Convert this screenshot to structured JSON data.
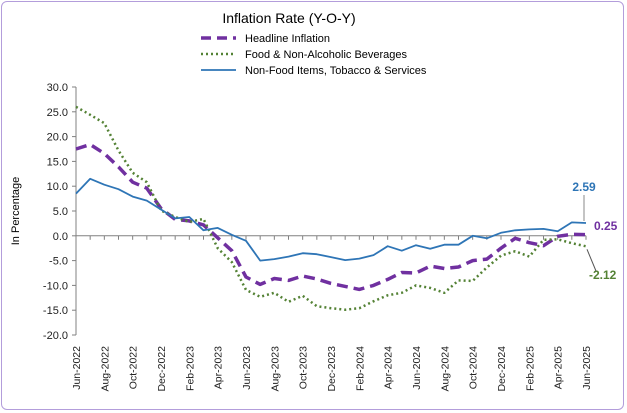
{
  "chart_data": {
    "type": "line",
    "title": "Inflation Rate (Y-O-Y)",
    "xlabel": "",
    "ylabel": "In Percentage",
    "ylim": [
      -20,
      30
    ],
    "yticks": [
      "30.0",
      "25.0",
      "20.0",
      "15.0",
      "10.0",
      "5.0",
      "0.0",
      "-5.0",
      "-10.0",
      "-15.0",
      "-20.0"
    ],
    "xtick_labels": [
      "Jun-2022",
      "Aug-2022",
      "Oct-2022",
      "Dec-2022",
      "Feb-2023",
      "Apr-2023",
      "Jun-2023",
      "Aug-2023",
      "Oct-2023",
      "Dec-2023",
      "Feb-2024",
      "Apr-2024",
      "Jun-2024",
      "Aug-2024",
      "Oct-2024",
      "Dec-2024",
      "Feb-2025",
      "Apr-2025",
      "Jun-2025"
    ],
    "categories": [
      "Jun-2022",
      "Jul-2022",
      "Aug-2022",
      "Sep-2022",
      "Oct-2022",
      "Nov-2022",
      "Dec-2022",
      "Jan-2023",
      "Feb-2023",
      "Mar-2023",
      "Apr-2023",
      "May-2023",
      "Jun-2023",
      "Jul-2023",
      "Aug-2023",
      "Sep-2023",
      "Oct-2023",
      "Nov-2023",
      "Dec-2023",
      "Jan-2024",
      "Feb-2024",
      "Mar-2024",
      "Apr-2024",
      "May-2024",
      "Jun-2024",
      "Jul-2024",
      "Aug-2024",
      "Sep-2024",
      "Oct-2024",
      "Nov-2024",
      "Dec-2024",
      "Jan-2025",
      "Feb-2025",
      "Mar-2025",
      "Apr-2025",
      "May-2025",
      "Jun-2025"
    ],
    "legend_position": "top",
    "series": [
      {
        "name": "Headline Inflation",
        "color": "#7030a0",
        "style": "dashed",
        "values": [
          17.5,
          18.4,
          16.6,
          13.9,
          10.8,
          9.6,
          5.5,
          3.3,
          3.0,
          2.2,
          -0.4,
          -3.0,
          -8.3,
          -9.8,
          -8.6,
          -9.0,
          -8.1,
          -8.7,
          -9.6,
          -10.2,
          -10.8,
          -10.0,
          -8.8,
          -7.4,
          -7.5,
          -6.1,
          -6.6,
          -6.3,
          -5.0,
          -4.7,
          -2.5,
          -0.5,
          -1.4,
          -2.0,
          -0.1,
          0.3,
          0.25
        ],
        "end_label": "0.25"
      },
      {
        "name": "Food & Non-Alcoholic Beverages",
        "color": "#548235",
        "style": "dotted",
        "values": [
          26.0,
          24.4,
          22.7,
          17.2,
          12.7,
          10.8,
          5.1,
          3.8,
          2.8,
          3.4,
          -2.5,
          -5.3,
          -10.9,
          -12.3,
          -11.5,
          -13.3,
          -12.1,
          -14.2,
          -14.6,
          -14.9,
          -14.6,
          -13.2,
          -12.0,
          -11.5,
          -10.0,
          -10.5,
          -11.5,
          -9.0,
          -9.1,
          -6.4,
          -4.0,
          -3.1,
          -4.2,
          -0.8,
          -0.7,
          -1.5,
          -2.12
        ],
        "end_label": "-2.12"
      },
      {
        "name": "Non-Food Items, Tobacco & Services",
        "color": "#2e75b6",
        "style": "solid",
        "values": [
          8.5,
          11.5,
          10.3,
          9.4,
          7.9,
          7.1,
          5.3,
          3.5,
          3.8,
          1.1,
          1.6,
          0.2,
          -1.0,
          -5.0,
          -4.7,
          -4.2,
          -3.5,
          -3.7,
          -4.3,
          -4.9,
          -4.6,
          -3.9,
          -2.1,
          -3.0,
          -1.9,
          -2.6,
          -1.8,
          -1.8,
          0.0,
          -0.5,
          0.6,
          1.1,
          1.3,
          1.4,
          0.9,
          2.7,
          2.59
        ],
        "end_label": "2.59"
      }
    ]
  }
}
